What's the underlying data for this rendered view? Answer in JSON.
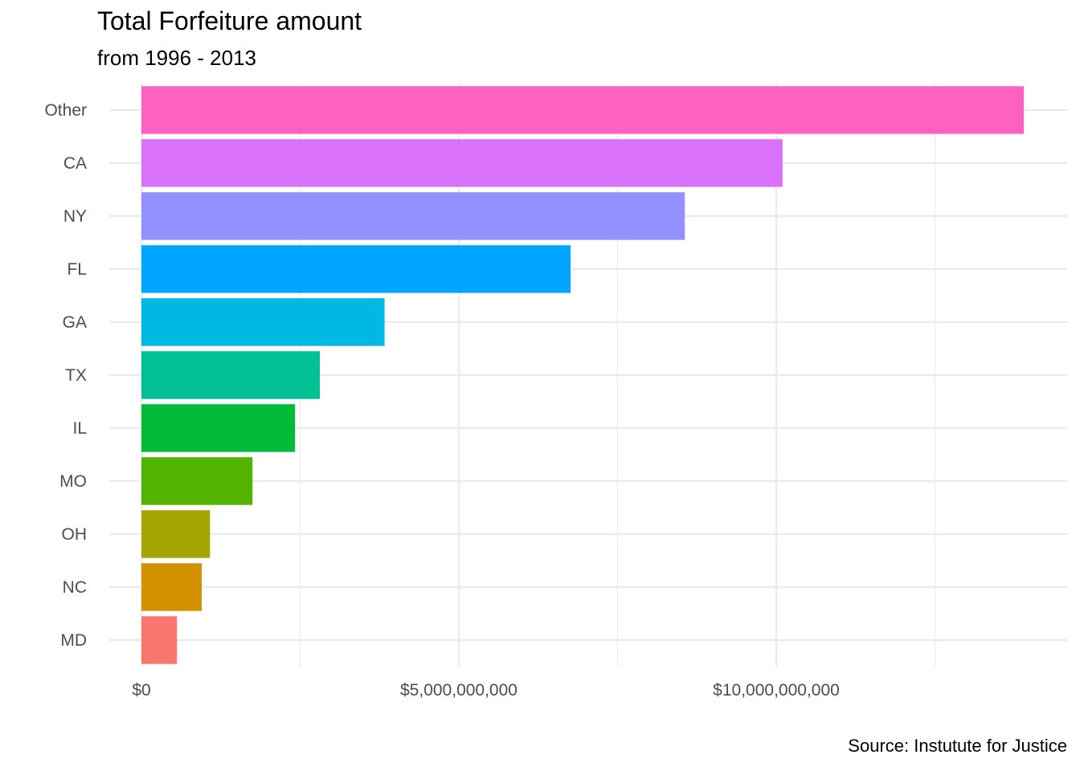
{
  "chart_data": {
    "type": "bar",
    "orientation": "horizontal",
    "title": "Total Forfeiture amount",
    "subtitle": "from 1996 - 2013",
    "caption": "Source: Instutute for Justice",
    "xlabel": "",
    "ylabel": "",
    "categories": [
      "MD",
      "NC",
      "OH",
      "MO",
      "IL",
      "TX",
      "GA",
      "FL",
      "NY",
      "CA",
      "Other"
    ],
    "values": [
      560000000,
      950000000,
      1080000000,
      1750000000,
      2420000000,
      2810000000,
      3830000000,
      6760000000,
      8560000000,
      10100000000,
      13900000000
    ],
    "colors": [
      "#F8766D",
      "#D39200",
      "#A3A500",
      "#53B400",
      "#00BA38",
      "#00C094",
      "#00B9E3",
      "#00A5FF",
      "#9590FF",
      "#DB72FB",
      "#FF61C3"
    ],
    "xlim": [
      -150000000,
      14600000000
    ],
    "x_ticks": [
      0,
      5000000000,
      10000000000
    ],
    "x_tick_labels": [
      "$0",
      "$5,000,000,000",
      "$10,000,000,000"
    ],
    "x_minor_ticks": [
      2500000000,
      7500000000,
      12500000000
    ],
    "grid": true,
    "legend": "none"
  }
}
